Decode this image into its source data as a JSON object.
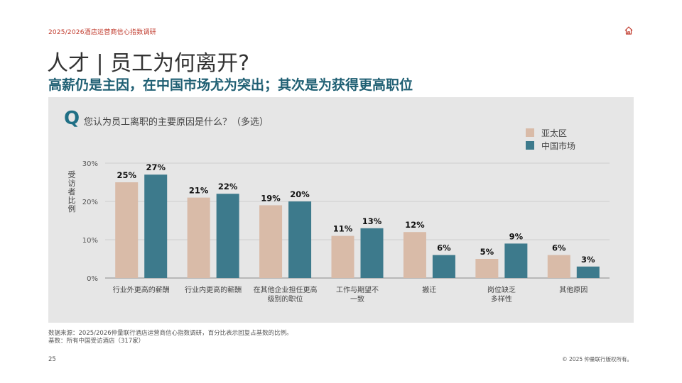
{
  "header": {
    "tag": "2025/2026酒店运营商信心指数调研"
  },
  "slide": {
    "title": "人才 | 员工为何离开?",
    "subtitle": "高薪仍是主因，在中国市场尤为突出；其次是为获得更高职位",
    "question_mark": "Q",
    "question": "您认为员工离职的主要原因是什么？（多选）",
    "ylabel": "受访者比例"
  },
  "colors": {
    "apac": "#d9bba8",
    "china": "#3d7a8c",
    "accent": "#c0392b"
  },
  "chart_data": {
    "type": "bar",
    "categories": [
      [
        "行业外更高的薪酬"
      ],
      [
        "行业内更高的薪酬"
      ],
      [
        "在其他企业担任更高",
        "级别的职位"
      ],
      [
        "工作与期望不",
        "一致"
      ],
      [
        "搬迁"
      ],
      [
        "岗位缺乏",
        "多样性"
      ],
      [
        "其他原因"
      ]
    ],
    "series": [
      {
        "name": "亚太区",
        "values": [
          25,
          21,
          19,
          11,
          12,
          5,
          6
        ]
      },
      {
        "name": "中国市场",
        "values": [
          27,
          22,
          20,
          13,
          6,
          9,
          3
        ]
      }
    ],
    "ylim": [
      0,
      30
    ],
    "yticks": [
      0,
      10,
      20,
      30
    ],
    "tick_suffix": "%",
    "legend_position": "top-right",
    "grid": true
  },
  "footer": {
    "source": "数据来源：2025/2026仲量联行酒店运营商信心指数调研，百分比表示回复占基数的比例。",
    "base": "基数：所有中国受访酒店（317家）",
    "page": "25",
    "copyright": "© 2025 仲量联行版权所有。"
  }
}
